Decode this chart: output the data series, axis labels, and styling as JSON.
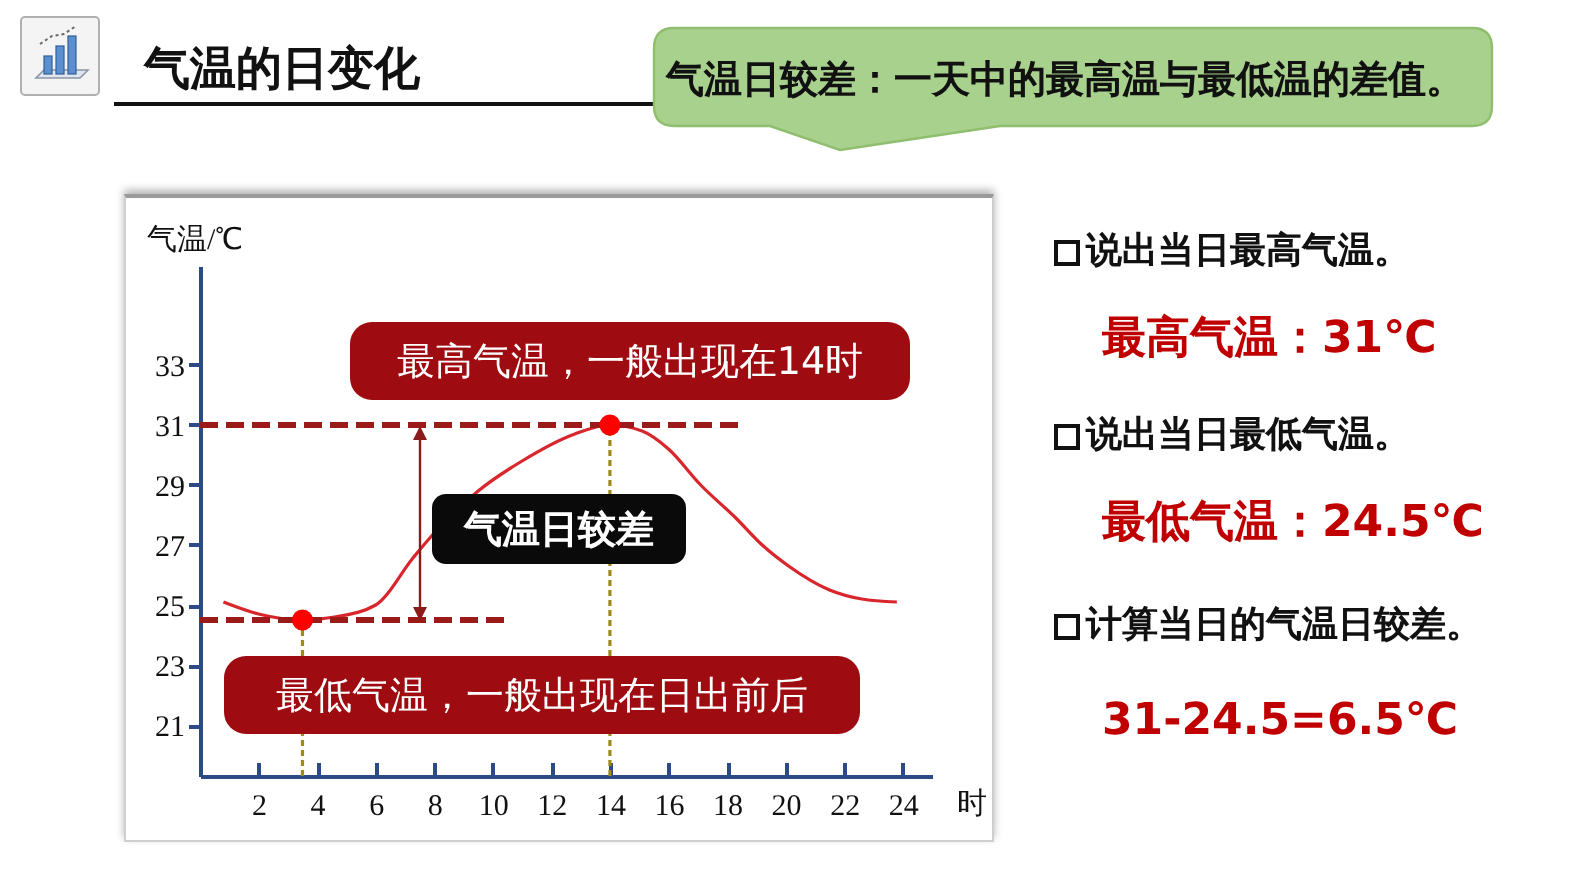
{
  "chart_data": {
    "type": "line",
    "title": "气温的日变化",
    "xlabel": "时",
    "ylabel": "气温/℃",
    "annotations": [
      "气温日较差：一天中的最高温与最低温的差值。",
      "最高气温，一般出现在14时",
      "最低气温，一般出现在日出前后",
      "气温日较差",
      "说出当日最高气温。",
      "最高气温：31℃",
      "说出当日最低气温。",
      "最低气温：24.5℃",
      "计算当日的气温日较差。",
      "31-24.5=6.5℃"
    ],
    "x": [
      0.8,
      2,
      3.5,
      4.6,
      6,
      7.3,
      8,
      9.5,
      11,
      12.8,
      14,
      15.1,
      16,
      17.1,
      18.3,
      19.2,
      20.1,
      21.5,
      22.6,
      23.8
    ],
    "xlim": [
      0,
      25
    ],
    "xticks": [
      2,
      4,
      6,
      8,
      10,
      12,
      14,
      16,
      18,
      20,
      22,
      24
    ],
    "ylim": [
      19.3,
      36.3
    ],
    "yticks": [
      21,
      23,
      25,
      27,
      29,
      31,
      33
    ],
    "series": [
      {
        "type": "line",
        "color": "#d9262c",
        "values": [
          25.1,
          24.7,
          24.5,
          24.6,
          25,
          26.6,
          27.4,
          28.8,
          29.8,
          30.7,
          31,
          30.8,
          30.2,
          29,
          27.9,
          27,
          26.3,
          25.5,
          25.2,
          25.1
        ]
      },
      {
        "type": "line",
        "color": "#9b1b1b",
        "line_style": "dashed",
        "x": [
          0,
          18.4
        ],
        "values": [
          31,
          31
        ]
      },
      {
        "type": "line",
        "color": "#9b1b1b",
        "line_style": "dashed",
        "x": [
          0,
          10.5
        ],
        "values": [
          24.5,
          24.5
        ]
      },
      {
        "type": "line",
        "color": "#a08a1e",
        "line_style": "dotted",
        "x": [
          3.5,
          3.5
        ],
        "values": [
          19.3,
          24.5
        ]
      },
      {
        "type": "line",
        "color": "#a08a1e",
        "line_style": "dotted",
        "x": [
          14,
          14
        ],
        "values": [
          19.3,
          31
        ]
      },
      {
        "type": "scatter",
        "color": "#ff0000",
        "marker": "circle",
        "x": [
          3.5,
          14
        ],
        "values": [
          24.5,
          31
        ]
      }
    ]
  }
}
